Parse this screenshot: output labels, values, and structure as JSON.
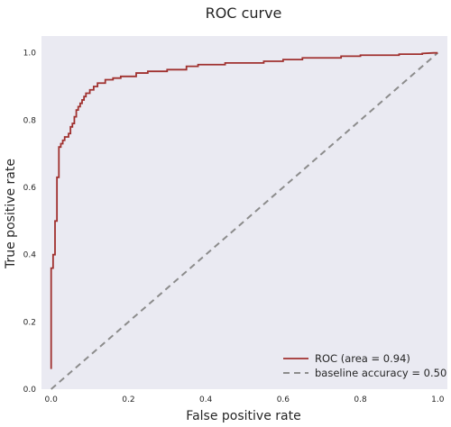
{
  "chart_data": {
    "type": "line",
    "title": "ROC curve",
    "xlabel": "False positive rate",
    "ylabel": "True positive rate",
    "xlim": [
      -0.025,
      1.025
    ],
    "ylim": [
      0.0,
      1.05
    ],
    "xticks": [
      "0.0",
      "0.2",
      "0.4",
      "0.6",
      "0.8",
      "1.0"
    ],
    "yticks": [
      "0.0",
      "0.2",
      "0.4",
      "0.6",
      "0.8",
      "1.0"
    ],
    "grid": false,
    "legend_position": "lower-right",
    "background_color": "#eaeaf2",
    "series": [
      {
        "name": "ROC (area = 0.94)",
        "color": "#a0312f",
        "style": "solid",
        "x": [
          0.0,
          0.0,
          0.005,
          0.005,
          0.01,
          0.01,
          0.015,
          0.015,
          0.02,
          0.02,
          0.025,
          0.025,
          0.03,
          0.03,
          0.035,
          0.035,
          0.045,
          0.045,
          0.05,
          0.05,
          0.055,
          0.055,
          0.06,
          0.06,
          0.065,
          0.065,
          0.07,
          0.07,
          0.075,
          0.075,
          0.08,
          0.08,
          0.085,
          0.085,
          0.09,
          0.09,
          0.1,
          0.1,
          0.11,
          0.11,
          0.12,
          0.12,
          0.14,
          0.14,
          0.16,
          0.16,
          0.18,
          0.18,
          0.22,
          0.22,
          0.25,
          0.25,
          0.3,
          0.3,
          0.35,
          0.35,
          0.38,
          0.38,
          0.45,
          0.45,
          0.55,
          0.55,
          0.6,
          0.6,
          0.65,
          0.65,
          0.75,
          0.75,
          0.8,
          0.8,
          0.9,
          0.9,
          0.96,
          0.96,
          0.99,
          1.0
        ],
        "y": [
          0.06,
          0.36,
          0.36,
          0.4,
          0.4,
          0.5,
          0.5,
          0.63,
          0.63,
          0.72,
          0.72,
          0.73,
          0.73,
          0.74,
          0.74,
          0.75,
          0.75,
          0.76,
          0.76,
          0.78,
          0.78,
          0.79,
          0.79,
          0.81,
          0.81,
          0.83,
          0.83,
          0.84,
          0.84,
          0.85,
          0.85,
          0.86,
          0.86,
          0.87,
          0.87,
          0.88,
          0.88,
          0.89,
          0.89,
          0.9,
          0.9,
          0.91,
          0.91,
          0.92,
          0.92,
          0.925,
          0.925,
          0.93,
          0.93,
          0.94,
          0.94,
          0.945,
          0.945,
          0.95,
          0.95,
          0.96,
          0.96,
          0.965,
          0.965,
          0.97,
          0.97,
          0.975,
          0.975,
          0.98,
          0.98,
          0.985,
          0.985,
          0.99,
          0.99,
          0.993,
          0.993,
          0.996,
          0.996,
          0.998,
          1.0,
          1.0
        ]
      },
      {
        "name": "baseline accuracy = 0.50",
        "color": "#8c8c8c",
        "style": "dashed",
        "x": [
          0.0,
          1.0
        ],
        "y": [
          0.0,
          1.0
        ]
      }
    ]
  }
}
